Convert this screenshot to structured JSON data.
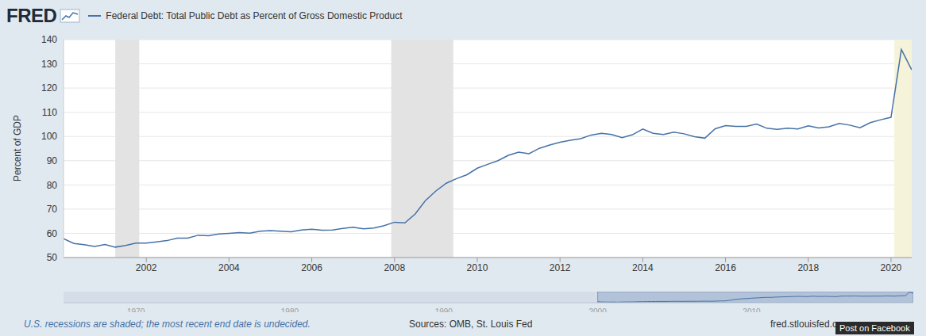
{
  "chart_data": {
    "type": "line",
    "logo": "FRED",
    "legend": "top-left",
    "y_label": "Percent of GDP",
    "footer_note": "U.S. recessions are shaded; the most recent end date is undecided.",
    "source": "Sources: OMB, St. Louis Fed",
    "site": "fred.stlouisfed.org",
    "share_button": "Post on Facebook",
    "grid": true,
    "x": [
      2000,
      2000.25,
      2000.5,
      2000.75,
      2001,
      2001.25,
      2001.5,
      2001.75,
      2002,
      2002.25,
      2002.5,
      2002.75,
      2003,
      2003.25,
      2003.5,
      2003.75,
      2004,
      2004.25,
      2004.5,
      2004.75,
      2005,
      2005.25,
      2005.5,
      2005.75,
      2006,
      2006.25,
      2006.5,
      2006.75,
      2007,
      2007.25,
      2007.5,
      2007.75,
      2008,
      2008.25,
      2008.5,
      2008.75,
      2009,
      2009.25,
      2009.5,
      2009.75,
      2010,
      2010.25,
      2010.5,
      2010.75,
      2011,
      2011.25,
      2011.5,
      2011.75,
      2012,
      2012.25,
      2012.5,
      2012.75,
      2013,
      2013.25,
      2013.5,
      2013.75,
      2014,
      2014.25,
      2014.5,
      2014.75,
      2015,
      2015.25,
      2015.5,
      2015.75,
      2016,
      2016.25,
      2016.5,
      2016.75,
      2017,
      2017.25,
      2017.5,
      2017.75,
      2018,
      2018.25,
      2018.5,
      2018.75,
      2019,
      2019.25,
      2019.5,
      2019.75,
      2020,
      2020.25,
      2020.5
    ],
    "series": [
      {
        "name": "Federal Debt: Total Public Debt as Percent of Gross Domestic Product",
        "color": "#4572a7",
        "values": [
          57.8,
          55.8,
          55.3,
          54.6,
          55.4,
          54.3,
          55.0,
          56.0,
          56.0,
          56.5,
          57.0,
          58.0,
          58.0,
          59.2,
          59.0,
          59.7,
          60.0,
          60.3,
          60.1,
          60.9,
          61.1,
          60.9,
          60.6,
          61.4,
          61.7,
          61.3,
          61.4,
          62.0,
          62.5,
          61.9,
          62.2,
          63.2,
          64.6,
          64.3,
          68.0,
          73.6,
          77.5,
          80.7,
          82.6,
          84.2,
          86.9,
          88.5,
          90.0,
          92.2,
          93.5,
          92.9,
          95.1,
          96.5,
          97.6,
          98.4,
          99.1,
          100.6,
          101.3,
          100.8,
          99.5,
          100.7,
          103.1,
          101.3,
          100.8,
          101.8,
          101.1,
          99.9,
          99.3,
          103.2,
          104.5,
          104.2,
          104.2,
          105.1,
          103.4,
          102.9,
          103.4,
          103.1,
          104.4,
          103.5,
          104.0,
          105.4,
          104.7,
          103.6,
          105.7,
          106.9,
          107.9,
          135.9,
          127.5
        ]
      }
    ],
    "xlim": [
      2000,
      2020.5
    ],
    "xticks": [
      2002,
      2004,
      2006,
      2008,
      2010,
      2012,
      2014,
      2016,
      2018,
      2020
    ],
    "ylim": [
      50,
      140
    ],
    "yticks": [
      50,
      60,
      70,
      80,
      90,
      100,
      110,
      120,
      130,
      140
    ],
    "recessions": [
      [
        2001.25,
        2001.83
      ],
      [
        2007.92,
        2009.42
      ],
      [
        2020.08,
        2020.5
      ]
    ],
    "navigator": {
      "xlim": [
        1965.3,
        2020.5
      ],
      "xticks": [
        1970,
        1980,
        1990,
        2000,
        2010
      ]
    }
  }
}
